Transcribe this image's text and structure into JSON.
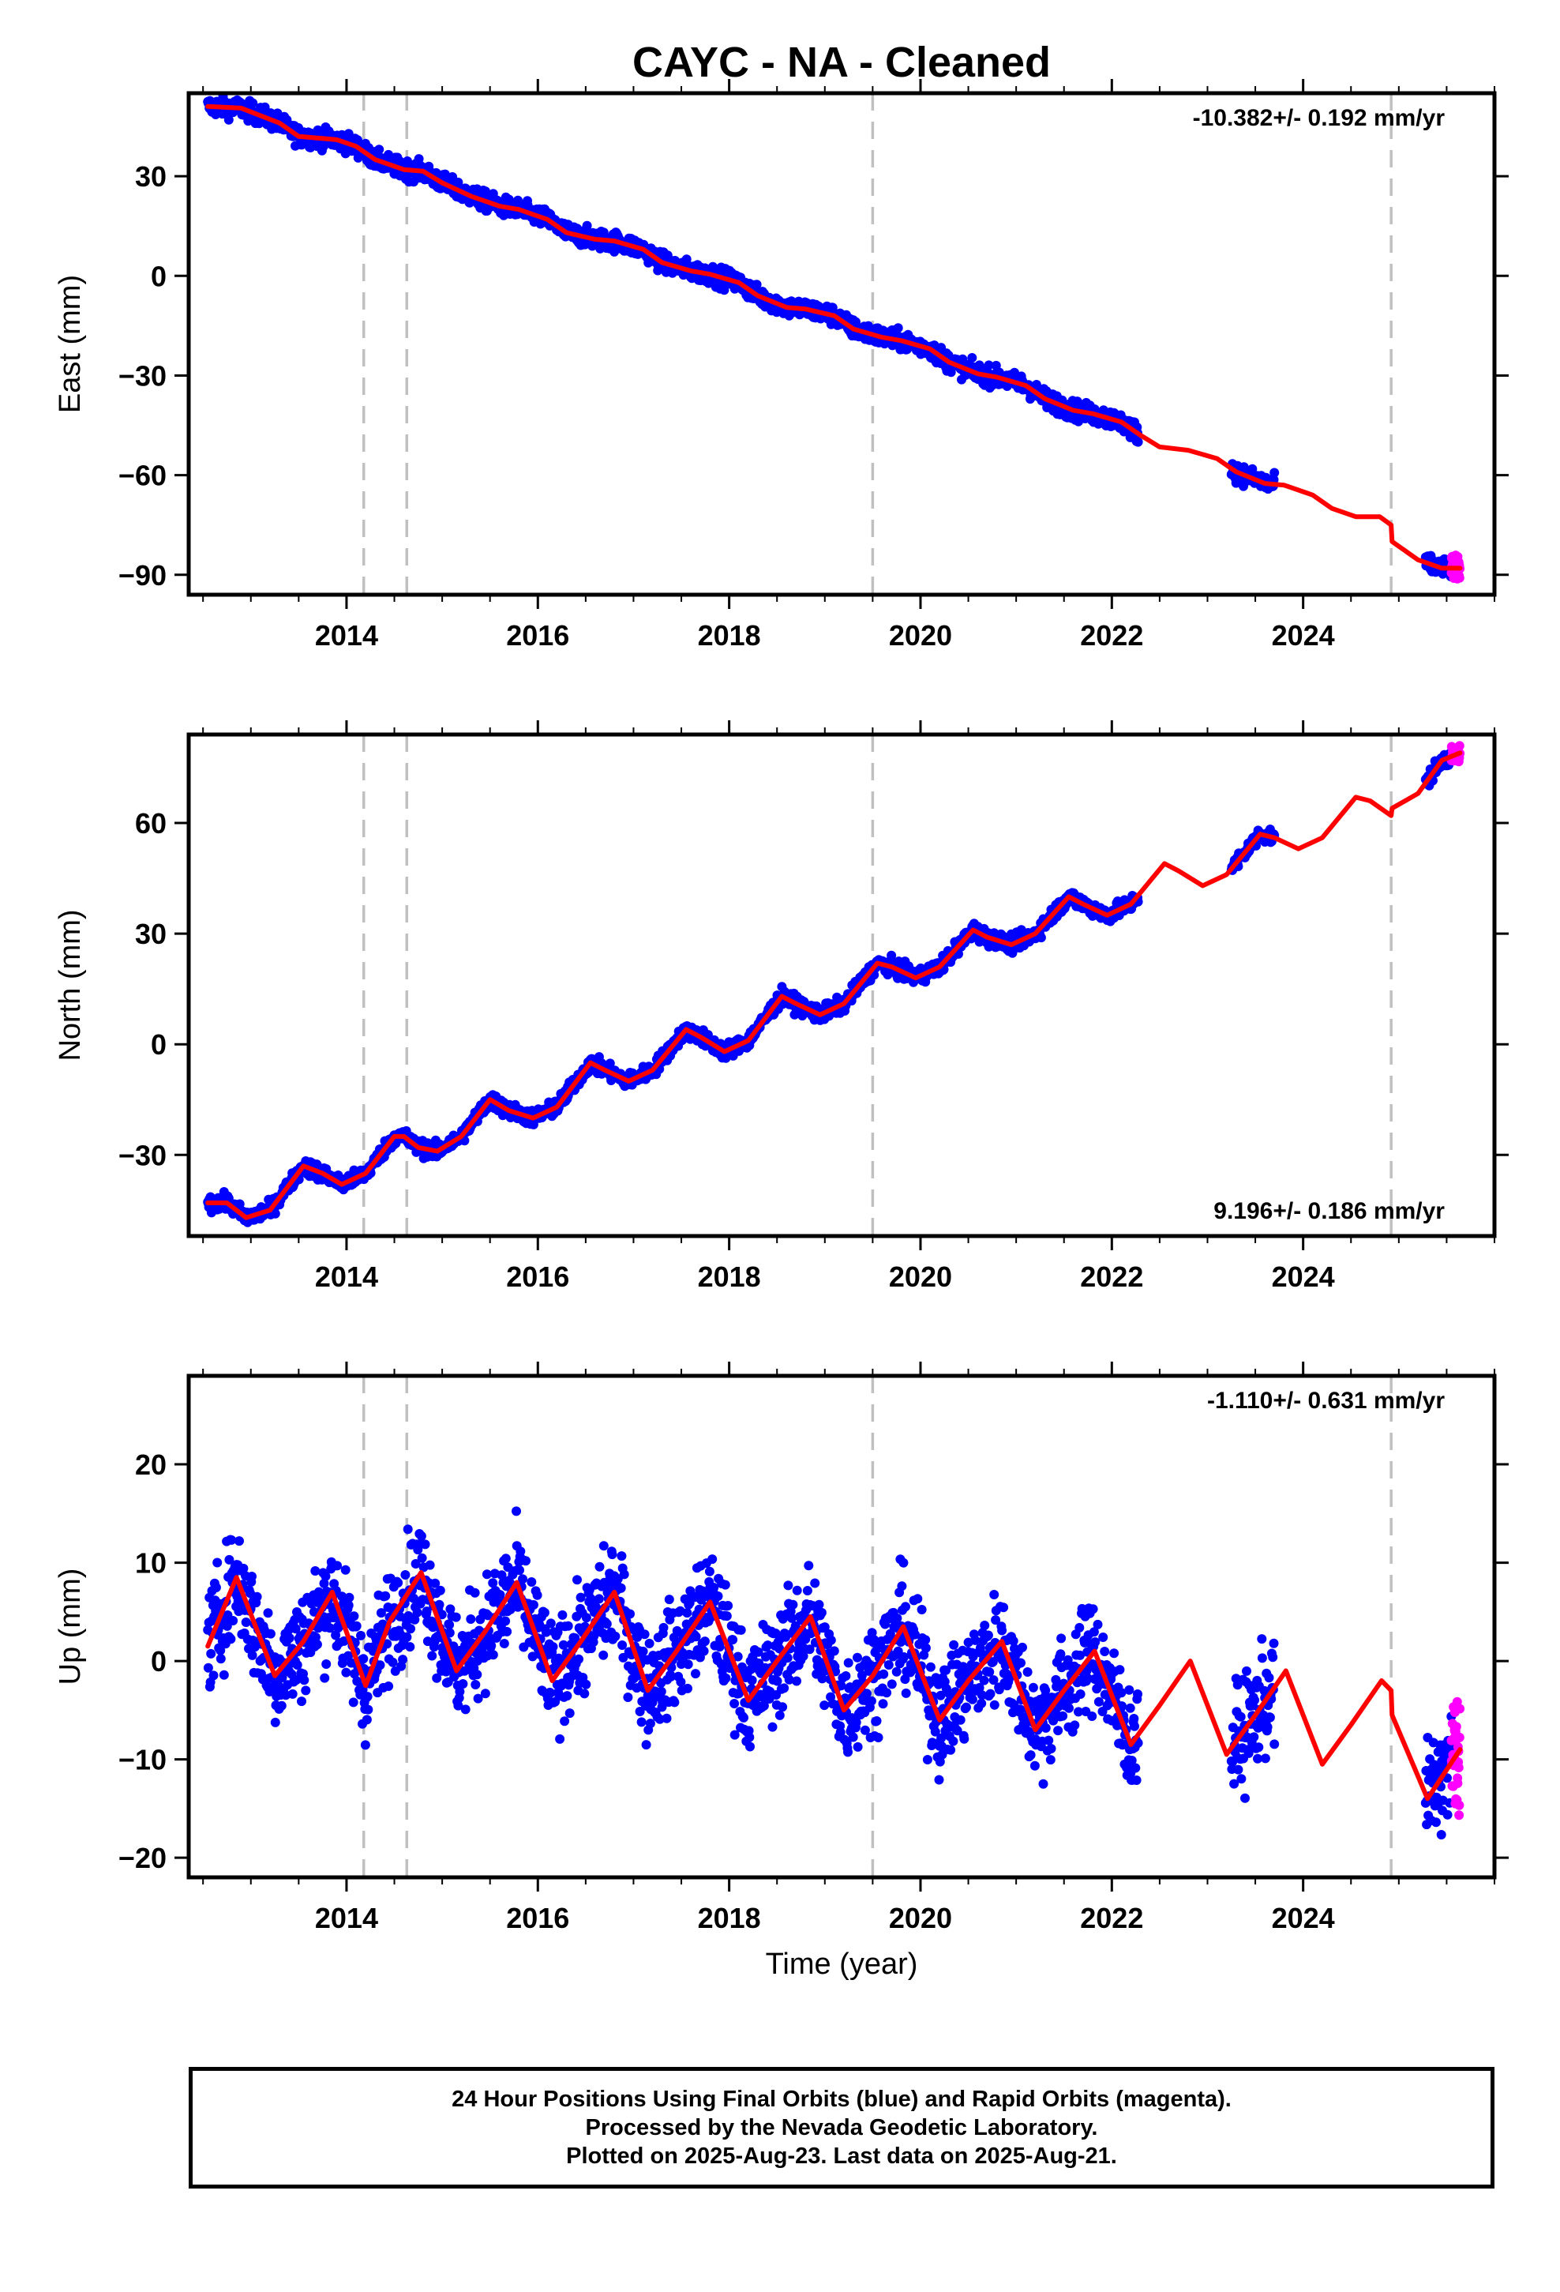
{
  "figure": {
    "title": "CAYC  - NA - Cleaned",
    "x_axis_label": "Time (year)"
  },
  "footer": {
    "lines": [
      "24 Hour Positions Using Final Orbits (blue) and Rapid Orbits (magenta).",
      "Processed by the Nevada Geodetic Laboratory.",
      "Plotted on 2025-Aug-23. Last data on 2025-Aug-21."
    ]
  },
  "colors": {
    "final_orbits": "#0000ff",
    "rapid_orbits": "#ff00ff",
    "model": "#ff0000",
    "event_lines": "#c0c0c0"
  },
  "chart_data": [
    {
      "type": "scatter",
      "ylabel": "East (mm)",
      "rate_label": "-10.382+/- 0.192 mm/yr",
      "rate_position": "top-right",
      "xlim": [
        2012.35,
        2026.0
      ],
      "ylim": [
        -96,
        55
      ],
      "xticks": [
        2014,
        2016,
        2018,
        2020,
        2022,
        2024
      ],
      "yticks": [
        -90,
        -60,
        -30,
        0,
        30
      ],
      "grid": false,
      "event_lines_x": [
        2014.18,
        2014.63,
        2019.5,
        2024.92
      ],
      "series": [
        {
          "name": "Final Orbits",
          "color": "#0000ff",
          "kind": "points",
          "segments": [
            [
              2012.55,
              2022.28
            ],
            [
              2023.25,
              2023.7
            ],
            [
              2025.28,
              2025.55
            ]
          ],
          "noise_mm": 2.0
        },
        {
          "name": "Rapid Orbits",
          "color": "#ff00ff",
          "kind": "points",
          "segments": [
            [
              2025.55,
              2025.64
            ]
          ],
          "noise_mm": 2.5
        },
        {
          "name": "Model",
          "color": "#ff0000",
          "kind": "line",
          "x": [
            2012.55,
            2012.9,
            2013.3,
            2013.5,
            2013.9,
            2014.1,
            2014.3,
            2014.6,
            2014.8,
            2015.0,
            2015.3,
            2015.6,
            2015.8,
            2016.1,
            2016.3,
            2016.6,
            2016.8,
            2017.1,
            2017.3,
            2017.6,
            2017.8,
            2018.1,
            2018.3,
            2018.6,
            2018.8,
            2019.1,
            2019.3,
            2019.6,
            2019.8,
            2020.1,
            2020.3,
            2020.6,
            2020.8,
            2021.1,
            2021.3,
            2021.6,
            2021.8,
            2022.1,
            2022.3,
            2022.5,
            2022.8,
            2023.1,
            2023.3,
            2023.6,
            2023.8,
            2024.1,
            2024.3,
            2024.55,
            2024.8,
            2024.92,
            2024.93,
            2025.2,
            2025.45,
            2025.64
          ],
          "y": [
            51,
            50.5,
            46,
            42,
            41,
            39,
            35,
            32,
            31.5,
            28,
            24,
            21,
            20,
            17,
            13,
            11,
            10.5,
            8,
            4,
            1.5,
            0.5,
            -2,
            -6,
            -9.5,
            -10,
            -12,
            -16,
            -18.5,
            -19.5,
            -22,
            -26,
            -29.5,
            -30.5,
            -33,
            -37,
            -40.5,
            -41.5,
            -44,
            -48,
            -51.5,
            -52.5,
            -55,
            -59,
            -62.5,
            -63,
            -66,
            -70,
            -72.5,
            -72.5,
            -75,
            -80,
            -85.5,
            -88,
            -88
          ]
        }
      ]
    },
    {
      "type": "scatter",
      "ylabel": "North (mm)",
      "rate_label": "9.196+/- 0.186 mm/yr",
      "rate_position": "bottom-right",
      "xlim": [
        2012.35,
        2026.0
      ],
      "ylim": [
        -52,
        84
      ],
      "xticks": [
        2014,
        2016,
        2018,
        2020,
        2022,
        2024
      ],
      "yticks": [
        -30,
        0,
        30,
        60
      ],
      "grid": false,
      "event_lines_x": [
        2014.18,
        2014.63,
        2019.5,
        2024.92
      ],
      "series": [
        {
          "name": "Final Orbits",
          "color": "#0000ff",
          "kind": "points",
          "segments": [
            [
              2012.55,
              2022.28
            ],
            [
              2023.25,
              2023.7
            ],
            [
              2025.28,
              2025.55
            ]
          ],
          "noise_mm": 1.5
        },
        {
          "name": "Rapid Orbits",
          "color": "#ff00ff",
          "kind": "points",
          "segments": [
            [
              2025.55,
              2025.64
            ]
          ],
          "noise_mm": 1.5
        },
        {
          "name": "Model",
          "color": "#ff0000",
          "kind": "line",
          "x": [
            2012.55,
            2012.75,
            2012.95,
            2013.2,
            2013.55,
            2013.75,
            2013.95,
            2014.2,
            2014.5,
            2014.6,
            2014.75,
            2014.95,
            2015.2,
            2015.5,
            2015.7,
            2015.95,
            2016.2,
            2016.55,
            2016.7,
            2016.95,
            2017.2,
            2017.55,
            2017.7,
            2017.95,
            2018.2,
            2018.55,
            2018.7,
            2018.95,
            2019.2,
            2019.55,
            2019.7,
            2019.95,
            2020.2,
            2020.55,
            2020.7,
            2020.95,
            2021.2,
            2021.55,
            2021.7,
            2021.95,
            2022.2,
            2022.55,
            2022.7,
            2022.95,
            2023.2,
            2023.55,
            2023.7,
            2023.95,
            2024.2,
            2024.55,
            2024.7,
            2024.92,
            2024.93,
            2025.2,
            2025.45,
            2025.64
          ],
          "y": [
            -43,
            -43,
            -47,
            -45,
            -33,
            -35,
            -38,
            -35,
            -25,
            -25,
            -28,
            -29,
            -25,
            -15,
            -18,
            -20,
            -17,
            -5,
            -7,
            -10,
            -7,
            4,
            2,
            -2,
            1,
            13,
            11,
            8,
            11,
            22,
            21,
            18,
            21,
            31,
            29,
            27,
            30,
            40,
            38,
            35,
            38,
            49,
            47,
            43,
            46,
            57,
            56,
            53,
            56,
            67,
            66,
            62,
            64,
            68,
            77,
            79
          ]
        }
      ]
    },
    {
      "type": "scatter",
      "ylabel": "Up (mm)",
      "xlabel": "Time (year)",
      "rate_label": "-1.110+/- 0.631 mm/yr",
      "rate_position": "top-right",
      "xlim": [
        2012.35,
        2026.0
      ],
      "ylim": [
        -22,
        29
      ],
      "xticks": [
        2014,
        2016,
        2018,
        2020,
        2022,
        2024
      ],
      "yticks": [
        -20,
        -10,
        0,
        10,
        20
      ],
      "grid": false,
      "event_lines_x": [
        2014.18,
        2014.63,
        2019.5,
        2024.92
      ],
      "series": [
        {
          "name": "Final Orbits",
          "color": "#0000ff",
          "kind": "points",
          "segments": [
            [
              2012.55,
              2022.28
            ],
            [
              2023.25,
              2023.7
            ],
            [
              2025.28,
              2025.55
            ]
          ],
          "noise_mm": 3.8
        },
        {
          "name": "Rapid Orbits",
          "color": "#ff00ff",
          "kind": "points",
          "segments": [
            [
              2025.55,
              2025.64
            ]
          ],
          "noise_mm": 5.0
        },
        {
          "name": "Model",
          "color": "#ff0000",
          "kind": "line",
          "x": [
            2012.55,
            2012.85,
            2013.25,
            2013.55,
            2013.85,
            2014.2,
            2014.45,
            2014.78,
            2015.15,
            2015.45,
            2015.78,
            2016.15,
            2016.45,
            2016.8,
            2017.15,
            2017.45,
            2017.8,
            2018.2,
            2018.5,
            2018.85,
            2019.2,
            2019.5,
            2019.82,
            2020.2,
            2020.5,
            2020.85,
            2021.2,
            2021.5,
            2021.82,
            2022.2,
            2022.5,
            2022.82,
            2023.2,
            2023.5,
            2023.82,
            2024.2,
            2024.5,
            2024.82,
            2024.92,
            2024.93,
            2025.3,
            2025.64
          ],
          "y": [
            1.5,
            8.5,
            -1.5,
            2,
            7,
            -2.5,
            4,
            9,
            -1,
            3,
            8,
            -2,
            2,
            7,
            -3,
            1,
            6,
            -4,
            0,
            4.5,
            -5,
            -1.5,
            3.5,
            -6,
            -2,
            2,
            -7,
            -3,
            1,
            -8.5,
            -4.5,
            0,
            -9.5,
            -5.5,
            -1,
            -10.5,
            -6.5,
            -2,
            -3,
            -5.5,
            -14,
            -9
          ]
        }
      ]
    }
  ]
}
